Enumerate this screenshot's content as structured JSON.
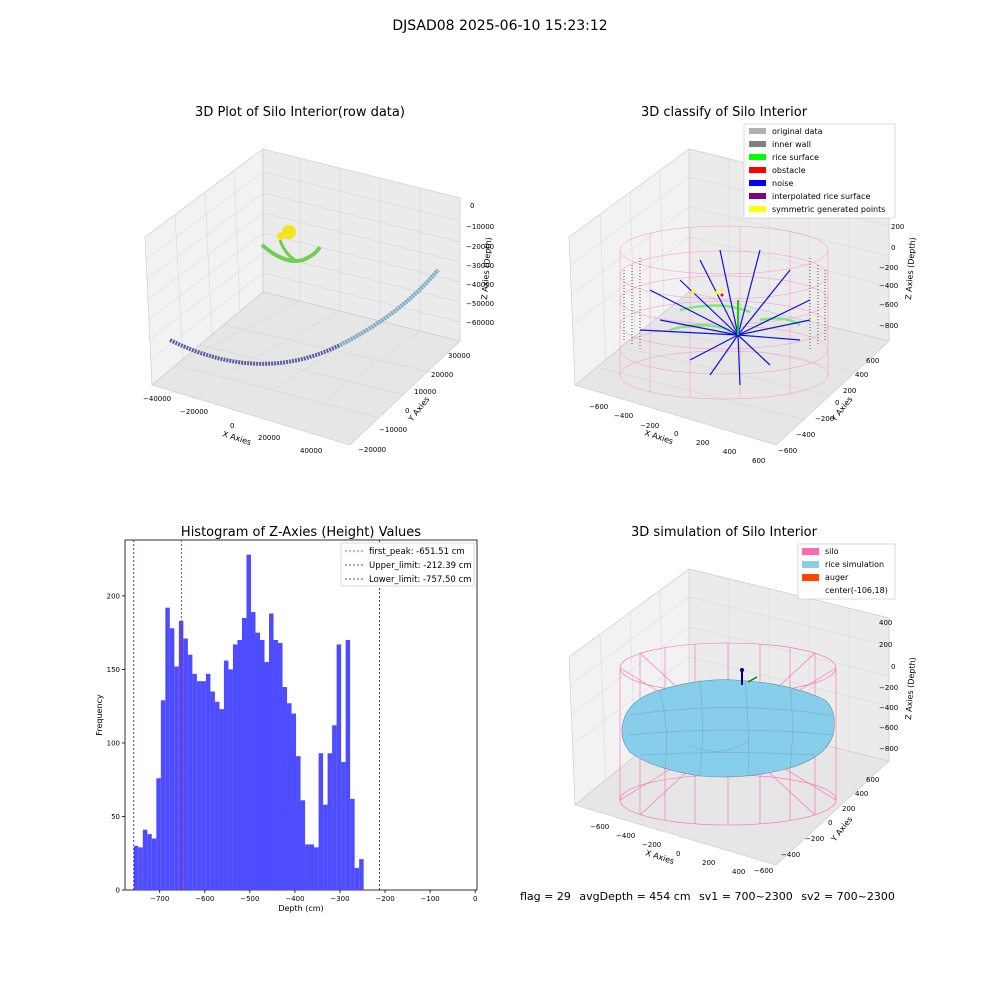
{
  "suptitle": "DJSAD08 2025-06-10 15:23:12",
  "footer": {
    "flag": "flag = 29",
    "avg": "avgDepth = 454 cm",
    "sv1": "sv1 = 700~2300",
    "sv2": "sv2 = 700~2300"
  },
  "colors": {
    "original": "#b0b0b0",
    "inner_wall": "#808080",
    "rice_surface": "#00ff00",
    "obstacle": "#ff0000",
    "noise": "#0000ff",
    "interpolated": "#800080",
    "symmetric": "#ffff00",
    "silo": "#ff69b4",
    "rice_sim": "#87ceeb",
    "auger": "#ff4500",
    "hist_bar": "#4d4dff"
  },
  "chart_data": [
    {
      "type": "scatter",
      "title": "3D Plot of Silo Interior(row data)",
      "xlabel": "X Axies",
      "ylabel": "Y Axies",
      "zlabel": "Z Axies (Depth)",
      "x_ticks": [
        "−40000",
        "−20000",
        "0",
        "20000",
        "40000"
      ],
      "y_ticks": [
        "−20000",
        "−10000",
        "0",
        "10000",
        "20000",
        "30000"
      ],
      "z_ticks": [
        "0",
        "−10000",
        "−20000",
        "−30000",
        "−40000",
        "−50000",
        "−60000"
      ]
    },
    {
      "type": "scatter",
      "title": "3D classify of Silo Interior",
      "xlabel": "X Axies",
      "ylabel": "Y Axies",
      "zlabel": "Z Axies (Depth)",
      "x_ticks": [
        "−600",
        "−400",
        "−200",
        "0",
        "200",
        "400",
        "600"
      ],
      "y_ticks": [
        "−600",
        "−400",
        "−200",
        "0",
        "200",
        "400",
        "600"
      ],
      "z_ticks": [
        "200",
        "0",
        "−200",
        "−400",
        "−600",
        "−800"
      ],
      "legend": [
        "original data",
        "inner wall",
        "rice surface",
        "obstacle",
        "noise",
        "interpolated rice surface",
        "symmetric generated points"
      ]
    },
    {
      "type": "bar",
      "title": "Histogram of Z-Axies (Height) Values",
      "xlabel": "Depth (cm)",
      "ylabel": "Frequency",
      "xlim": [
        -777,
        4
      ],
      "ylim": [
        0,
        238
      ],
      "x_ticks": [
        -700,
        -600,
        -500,
        -400,
        -300,
        -200,
        -100,
        0
      ],
      "y_ticks": [
        0,
        50,
        100,
        150,
        200
      ],
      "bin_start": -757.5,
      "bin_width": 10.0,
      "values": [
        30,
        29,
        41,
        38,
        35,
        76,
        129,
        192,
        178,
        152,
        183,
        171,
        160,
        147,
        142,
        142,
        147,
        135,
        128,
        123,
        156,
        150,
        167,
        170,
        185,
        228,
        189,
        175,
        170,
        155,
        188,
        170,
        168,
        138,
        127,
        120,
        91,
        61,
        31,
        31,
        29,
        93,
        58,
        93,
        112,
        167,
        87,
        170,
        62,
        15,
        21
      ],
      "vlines": [
        {
          "label": "first_peak: -651.51 cm",
          "x": -651.51,
          "color": "#ff0000"
        },
        {
          "label": "Upper_limit: -212.39 cm",
          "x": -212.39,
          "color": "#0000ff"
        },
        {
          "label": "Lower_limit: -757.50 cm",
          "x": -757.5,
          "color": "#0000ff"
        }
      ]
    },
    {
      "type": "scatter",
      "title": "3D simulation of Silo Interior",
      "xlabel": "X Axies",
      "ylabel": "Y Axies",
      "zlabel": "Z Axies (Depth)",
      "x_ticks": [
        "−600",
        "−400",
        "−200",
        "0",
        "200",
        "400"
      ],
      "y_ticks": [
        "−600",
        "−400",
        "−200",
        "0",
        "200",
        "400",
        "600"
      ],
      "z_ticks": [
        "400",
        "200",
        "0",
        "−200",
        "−400",
        "−600",
        "−800"
      ],
      "legend": [
        "silo",
        "rice simulation",
        "auger",
        "center(-106,18)"
      ]
    }
  ]
}
